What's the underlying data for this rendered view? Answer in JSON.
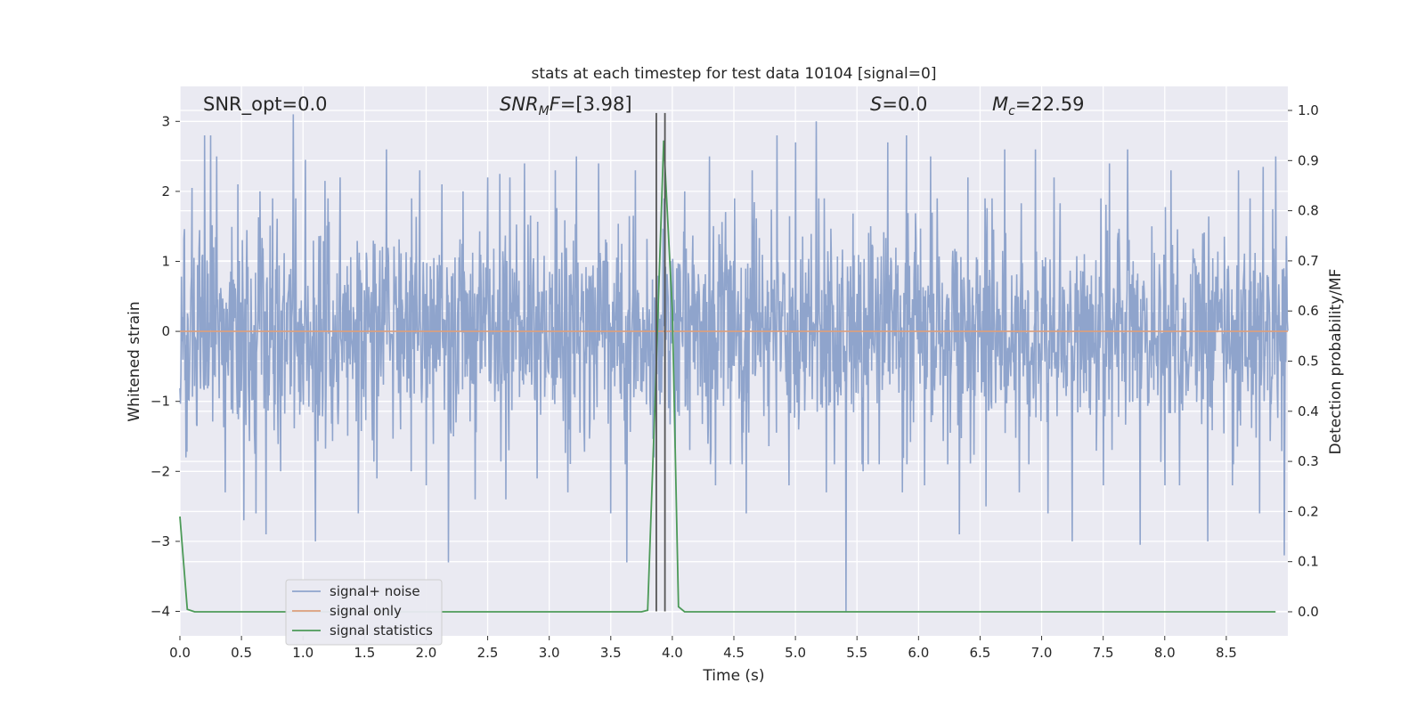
{
  "chart_data": {
    "type": "line",
    "title": "stats at each timestep for test data 10104 [signal=0]",
    "xlabel": "Time (s)",
    "ylabel": "Whitened strain",
    "ylabel_right": "Detection probability/MF",
    "xlim": [
      0,
      9.0
    ],
    "ylim": [
      -4.35,
      3.5
    ],
    "ylim_right": [
      -0.048,
      1.048
    ],
    "xticks": [
      0.0,
      0.5,
      1.0,
      1.5,
      2.0,
      2.5,
      3.0,
      3.5,
      4.0,
      4.5,
      5.0,
      5.5,
      6.0,
      6.5,
      7.0,
      7.5,
      8.0,
      8.5
    ],
    "xtick_labels": [
      "0.0",
      "0.5",
      "1.0",
      "1.5",
      "2.0",
      "2.5",
      "3.0",
      "3.5",
      "4.0",
      "4.5",
      "5.0",
      "5.5",
      "6.0",
      "6.5",
      "7.0",
      "7.5",
      "8.0",
      "8.5"
    ],
    "yticks": [
      -4,
      -3,
      -2,
      -1,
      0,
      1,
      2,
      3
    ],
    "ytick_labels": [
      "−4",
      "−3",
      "−2",
      "−1",
      "0",
      "1",
      "2",
      "3"
    ],
    "yticks_right": [
      0.0,
      0.1,
      0.2,
      0.3,
      0.4,
      0.5,
      0.6,
      0.7,
      0.8,
      0.9,
      1.0
    ],
    "ytick_labels_right": [
      "0.0",
      "0.1",
      "0.2",
      "0.3",
      "0.4",
      "0.5",
      "0.6",
      "0.7",
      "0.8",
      "0.9",
      "1.0"
    ],
    "grid": true,
    "legend_position": "lower-left",
    "annotations": {
      "snr_opt": "SNR_opt=0.0",
      "snr_mf_main": "SNR",
      "snr_mf_sub": "M",
      "snr_mf_tail": "F",
      "snr_mf_value": "=[3.98]",
      "s_label": "S",
      "s_value": "=0.0",
      "mc_main": "M",
      "mc_sub": "c",
      "mc_value": "=22.59"
    },
    "vertical_lines_x": [
      3.87,
      3.94
    ],
    "series": [
      {
        "name": "signal+ noise",
        "color": "#8fa4cc",
        "axis": "left",
        "noise_sigma": 0.75,
        "peaks": [
          [
            0.1,
            2.05
          ],
          [
            0.2,
            2.8
          ],
          [
            0.25,
            2.8
          ],
          [
            0.3,
            2.5
          ],
          [
            0.47,
            2.1
          ],
          [
            0.65,
            2.0
          ],
          [
            0.7,
            2.4
          ],
          [
            0.92,
            3.1
          ],
          [
            1.02,
            2.45
          ],
          [
            1.18,
            2.15
          ],
          [
            1.3,
            2.2
          ],
          [
            1.45,
            2.15
          ],
          [
            1.68,
            2.6
          ],
          [
            1.95,
            2.3
          ],
          [
            2.13,
            2.1
          ],
          [
            2.3,
            2.0
          ],
          [
            2.5,
            2.2
          ],
          [
            2.6,
            2.25
          ],
          [
            2.68,
            2.2
          ],
          [
            2.8,
            2.4
          ],
          [
            3.05,
            2.3
          ],
          [
            3.22,
            2.5
          ],
          [
            3.4,
            2.4
          ],
          [
            3.5,
            2.8
          ],
          [
            3.7,
            2.3
          ],
          [
            4.1,
            2.0
          ],
          [
            4.3,
            2.5
          ],
          [
            4.65,
            2.3
          ],
          [
            4.85,
            2.8
          ],
          [
            5.0,
            2.7
          ],
          [
            5.17,
            3.0
          ],
          [
            5.55,
            2.2
          ],
          [
            5.75,
            2.7
          ],
          [
            5.9,
            2.8
          ],
          [
            6.1,
            2.5
          ],
          [
            6.4,
            2.2
          ],
          [
            6.7,
            2.6
          ],
          [
            6.95,
            2.6
          ],
          [
            7.1,
            2.2
          ],
          [
            7.25,
            2.7
          ],
          [
            7.55,
            2.4
          ],
          [
            7.7,
            2.6
          ],
          [
            8.05,
            2.3
          ],
          [
            8.35,
            2.5
          ],
          [
            8.6,
            2.3
          ],
          [
            8.8,
            2.35
          ],
          [
            8.9,
            2.5
          ]
        ],
        "troughs": [
          [
            0.05,
            -1.8
          ],
          [
            0.37,
            -2.3
          ],
          [
            0.52,
            -2.7
          ],
          [
            0.62,
            -2.6
          ],
          [
            0.7,
            -2.9
          ],
          [
            0.82,
            -2.0
          ],
          [
            1.1,
            -3.0
          ],
          [
            1.45,
            -2.6
          ],
          [
            1.6,
            -2.1
          ],
          [
            1.88,
            -2.0
          ],
          [
            2.0,
            -2.2
          ],
          [
            2.18,
            -3.3
          ],
          [
            2.4,
            -2.4
          ],
          [
            2.65,
            -2.4
          ],
          [
            2.9,
            -2.1
          ],
          [
            3.15,
            -2.3
          ],
          [
            3.5,
            -2.6
          ],
          [
            3.63,
            -3.3
          ],
          [
            3.85,
            -1.8
          ],
          [
            4.35,
            -2.2
          ],
          [
            4.6,
            -2.6
          ],
          [
            4.95,
            -2.2
          ],
          [
            5.25,
            -2.3
          ],
          [
            5.41,
            -4.0
          ],
          [
            5.55,
            -2.0
          ],
          [
            5.87,
            -2.3
          ],
          [
            6.05,
            -2.2
          ],
          [
            6.33,
            -2.9
          ],
          [
            6.55,
            -2.5
          ],
          [
            6.82,
            -2.3
          ],
          [
            7.05,
            -2.6
          ],
          [
            7.25,
            -3.0
          ],
          [
            7.5,
            -2.2
          ],
          [
            7.8,
            -3.05
          ],
          [
            8.0,
            -2.2
          ],
          [
            8.12,
            -2.2
          ],
          [
            8.35,
            -3.0
          ],
          [
            8.55,
            -2.2
          ],
          [
            8.77,
            -2.6
          ],
          [
            8.97,
            -3.2
          ]
        ]
      },
      {
        "name": "signal only",
        "color": "#dd9f7c",
        "axis": "left",
        "x": [
          0,
          9.0
        ],
        "y": [
          0,
          0
        ]
      },
      {
        "name": "signal statistics",
        "color": "#4c9a58",
        "axis": "right",
        "x": [
          0.0,
          0.06,
          0.12,
          0.5,
          1.0,
          2.0,
          3.0,
          3.75,
          3.8,
          3.86,
          3.93,
          4.0,
          4.05,
          4.1,
          4.5,
          5.0,
          6.0,
          7.0,
          8.0,
          8.9
        ],
        "y": [
          0.19,
          0.005,
          0.0,
          0.0,
          0.0,
          0.0,
          0.0,
          0.0,
          0.003,
          0.42,
          0.94,
          0.6,
          0.01,
          0.0,
          0.0,
          0.0,
          0.0,
          0.0,
          0.0,
          0.0
        ]
      }
    ]
  }
}
